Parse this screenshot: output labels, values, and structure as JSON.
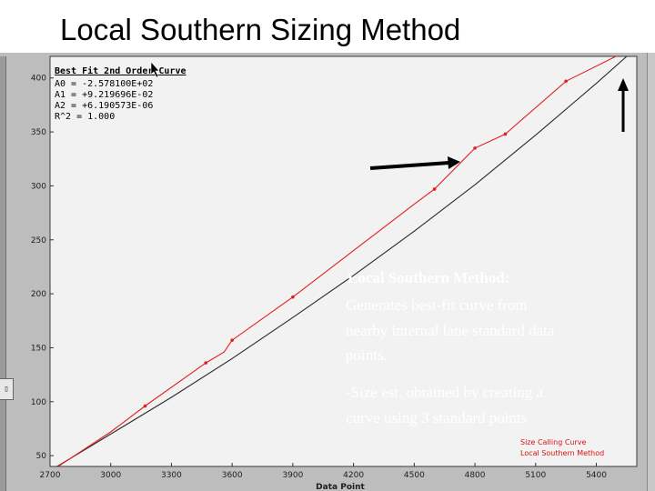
{
  "slide": {
    "title": "Local Southern Sizing Method"
  },
  "chart_data": {
    "type": "line",
    "title": "",
    "xlabel": "Data Point",
    "ylabel": "",
    "xlim": [
      2700,
      5600
    ],
    "ylim": [
      40,
      420
    ],
    "xticks": [
      2700,
      3000,
      3300,
      3600,
      3900,
      4200,
      4500,
      4800,
      5100,
      5400
    ],
    "yticks": [
      50,
      100,
      150,
      200,
      250,
      300,
      350,
      400
    ],
    "grid": false,
    "legend": "bottom-right",
    "fit_box": {
      "title": "Best Fit 2nd Order Curve",
      "lines": [
        "A0 = -2.578100E+02",
        "A1 = +9.219696E-02",
        "A2 = +6.190573E-06",
        "R^2 = 1.000"
      ]
    },
    "series": [
      {
        "name": "Size Calling Curve",
        "color": "#2a2a2a",
        "x": [
          2700,
          3000,
          3300,
          3600,
          3900,
          4200,
          4500,
          4800,
          5100,
          5400,
          5550
        ],
        "y": [
          36,
          70,
          104,
          140,
          178,
          217,
          258,
          301,
          347,
          395,
          420
        ]
      },
      {
        "name": "Local Southern Method",
        "color": "#e02020",
        "x": [
          2740,
          3000,
          3170,
          3470,
          3560,
          3600,
          3900,
          4200,
          4500,
          4600,
          4800,
          4950,
          5250,
          5550
        ],
        "y": [
          40,
          72,
          96,
          136,
          146,
          157,
          197,
          240,
          283,
          297,
          335,
          348,
          397,
          425
        ],
        "points": [
          [
            3170,
            96
          ],
          [
            3470,
            136
          ],
          [
            3600,
            157
          ],
          [
            3900,
            197
          ],
          [
            4600,
            297
          ],
          [
            4800,
            335
          ],
          [
            4950,
            348
          ],
          [
            5250,
            397
          ]
        ]
      }
    ],
    "annotations": {
      "heading": "Local Southern Method:",
      "line1": "Generates best-fit curve from",
      "line2": "nearby internal lane standard data",
      "line3": "points.",
      "line4": "-Size est. obtained by creating a",
      "line5": "curve using 3 standard points"
    },
    "arrows": [
      "horizontal arrow pointing right at the curve near x=4800",
      "vertical arrow pointing up at the right edge"
    ]
  }
}
